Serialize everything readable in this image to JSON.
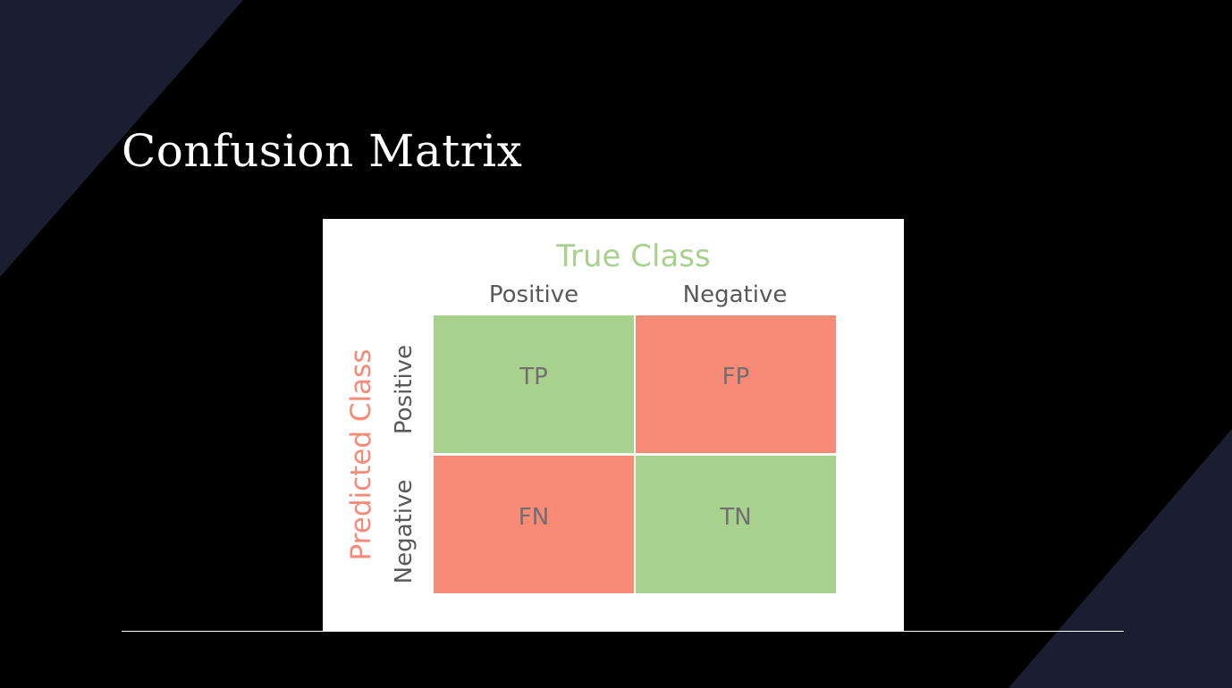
{
  "slide": {
    "title": "Confusion Matrix",
    "colors": {
      "background": "#000000",
      "accent_shape": "#1a1e30",
      "text": "#ffffff"
    }
  },
  "matrix": {
    "true_class_label": "True Class",
    "predicted_class_label": "Predicted Class",
    "columns": [
      "Positive",
      "Negative"
    ],
    "rows": [
      "Positive",
      "Negative"
    ],
    "cells": {
      "tp": "TP",
      "fp": "FP",
      "fn": "FN",
      "tn": "TN"
    },
    "colors": {
      "true_class": "#a9d18e",
      "predicted_class": "#f88a78",
      "correct_cell": "#a9d18e",
      "error_cell": "#f88a78",
      "cell_text": "#6f6f6f"
    }
  }
}
